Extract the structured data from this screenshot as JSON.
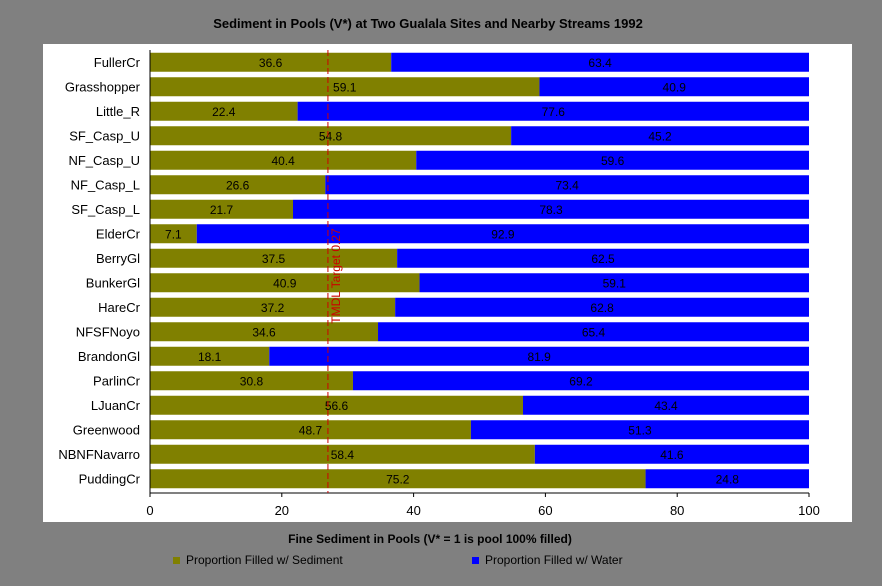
{
  "chart_data": {
    "type": "bar",
    "orientation": "horizontal",
    "stacked": true,
    "title": "Sediment in Pools (V*) at Two Gualala Sites and Nearby Streams 1992",
    "xlabel": "Fine Sediment in Pools (V* = 1 is pool 100% filled)",
    "ylabel": "",
    "xlim": [
      0,
      100
    ],
    "xticks": [
      0,
      20,
      40,
      60,
      80,
      100
    ],
    "categories": [
      "FullerCr",
      "Grasshopper",
      "Little_R",
      "SF_Casp_U",
      "NF_Casp_U",
      "NF_Casp_L",
      "SF_Casp_L",
      "ElderCr",
      "BerryGl",
      "BunkerGl",
      "HareCr",
      "NFSFNoyo",
      "BrandonGl",
      "ParlinCr",
      "LJuanCr",
      "Greenwood",
      "NBNFNavarro",
      "PuddingCr"
    ],
    "series": [
      {
        "name": "Proportion Filled w/ Sediment",
        "color": "#808000",
        "values": [
          36.6,
          59.1,
          22.4,
          54.8,
          40.4,
          26.6,
          21.7,
          7.1,
          37.5,
          40.9,
          37.2,
          34.6,
          18.1,
          30.8,
          56.6,
          48.7,
          58.4,
          75.2
        ]
      },
      {
        "name": "Proportion Filled w/ Water",
        "color": "#0000ff",
        "values": [
          63.4,
          40.9,
          77.6,
          45.2,
          59.6,
          73.4,
          78.3,
          92.9,
          62.5,
          59.1,
          62.8,
          65.4,
          81.9,
          69.2,
          43.4,
          51.3,
          41.6,
          24.8
        ]
      }
    ],
    "reference_line": {
      "value": 27,
      "label": "TMDL Target 0.27",
      "color": "#cc0000"
    },
    "legend_position": "bottom",
    "grid": false
  }
}
